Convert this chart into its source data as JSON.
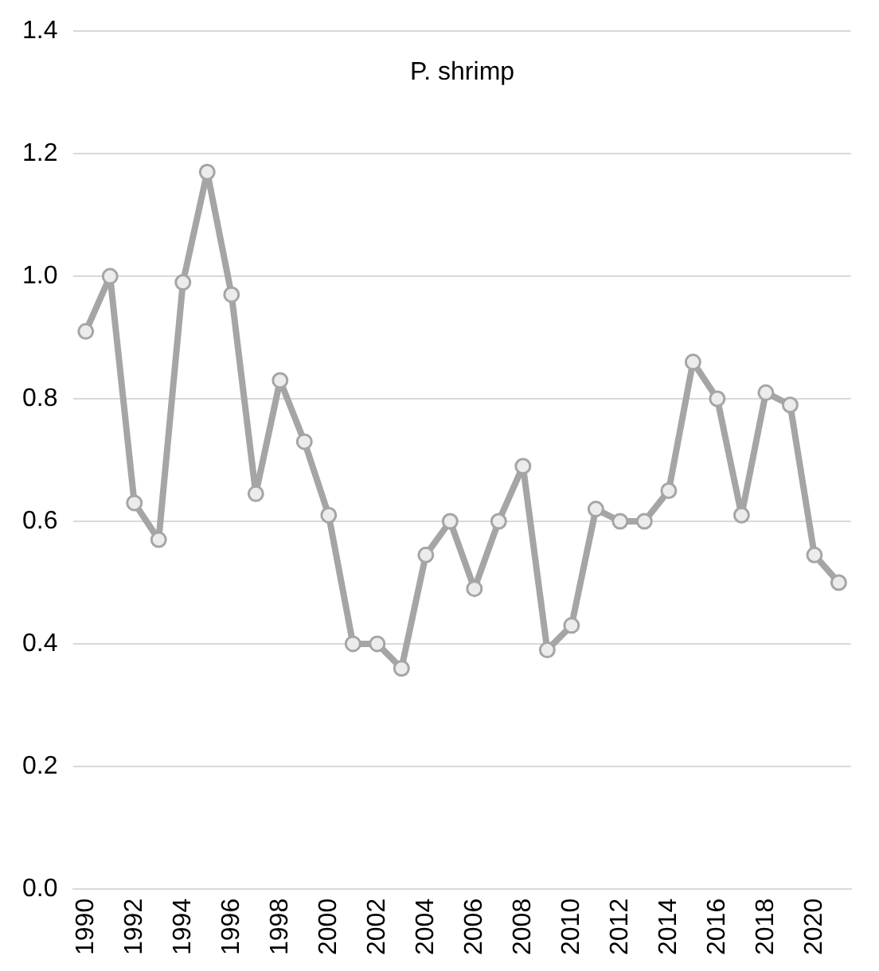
{
  "chart_data": {
    "type": "line",
    "title": "P. shrimp",
    "categories": [
      "1990",
      null,
      "1992",
      null,
      "1994",
      null,
      "1996",
      null,
      "1998",
      null,
      "2000",
      null,
      "2002",
      null,
      "2004",
      null,
      "2006",
      null,
      "2008",
      null,
      "2010",
      null,
      "2012",
      null,
      "2014",
      null,
      "2016",
      null,
      "2018",
      null,
      "2020",
      null
    ],
    "series": [
      {
        "color": "#a5a5a5",
        "values": [
          0.91,
          1.0,
          0.63,
          0.57,
          0.99,
          1.17,
          0.97,
          0.645,
          0.83,
          0.73,
          0.61,
          0.4,
          0.4,
          0.36,
          0.545,
          0.6,
          0.49,
          0.6,
          0.69,
          0.39,
          0.43,
          0.62,
          0.6,
          0.6,
          0.65,
          0.86,
          0.8,
          0.61,
          0.81,
          0.79,
          0.545,
          0.5
        ]
      }
    ],
    "ylim": [
      0,
      1.4
    ],
    "yticks": [
      {
        "value": 0,
        "label": "0.0"
      },
      0.2,
      0.4,
      0.6,
      0.8,
      {
        "value": 1,
        "label": "1.0"
      },
      1.2,
      1.4
    ],
    "grid": "y",
    "legend": false,
    "marker": "circle",
    "line_style": "solid"
  }
}
